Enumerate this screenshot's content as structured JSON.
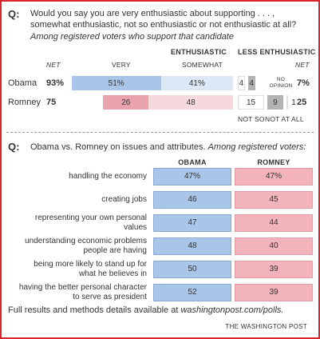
{
  "chart_data": [
    {
      "type": "diverging-bar",
      "question_marker": "Q:",
      "title": "Would you say you are very enthusiastic about supporting . . . , somewhat enthusiastic, not so enthusiastic or not enthusiastic at all?",
      "subtitle": "Among registered voters who support that candidate",
      "group_labels": [
        "ENTHUSIASTIC",
        "LESS ENTHUSIASTIC"
      ],
      "net_label": "NET",
      "categories": [
        "Obama",
        "Romney"
      ],
      "series": [
        {
          "name": "VERY",
          "colors": [
            "#a9c5e8",
            "#e8a3ad"
          ],
          "values": [
            51,
            26
          ],
          "value_labels": [
            "51%",
            "26"
          ]
        },
        {
          "name": "SOMEWHAT",
          "colors": [
            "#dce8f6",
            "#f6d9dd"
          ],
          "values": [
            41,
            48
          ],
          "value_labels": [
            "41%",
            "48"
          ]
        },
        {
          "name": "NOT SO",
          "colors": [
            "#ffffff",
            "#ffffff"
          ],
          "values": [
            4,
            15
          ],
          "value_labels": [
            "4",
            "15"
          ]
        },
        {
          "name": "NOT AT ALL",
          "colors": [
            "#b3b3b3",
            "#b3b3b3"
          ],
          "values": [
            4,
            9
          ],
          "value_labels": [
            "4",
            "9"
          ]
        },
        {
          "name": "NO OPINION",
          "colors": [
            "#dddddd",
            "#dddddd"
          ],
          "values": [
            null,
            1
          ],
          "value_labels": [
            null,
            "1"
          ]
        }
      ],
      "net": [
        {
          "values": [
            93,
            75
          ],
          "value_labels": [
            "93%",
            "75"
          ]
        },
        {
          "values": [
            7,
            25
          ],
          "value_labels": [
            "7%",
            "25"
          ]
        }
      ]
    },
    {
      "type": "table-bar",
      "question_marker": "Q:",
      "title": "Obama vs. Romney on issues and attributes.",
      "subtitle": "Among registered voters:",
      "categories": [
        "handling the economy",
        "creating jobs",
        "representing your own personal values",
        "understanding economic problems people are having",
        "being more likely to stand up for what he believes in",
        "having the better personal character to serve as president"
      ],
      "series": [
        {
          "name": "OBAMA",
          "color": "#a9c5e8",
          "values": [
            47,
            46,
            47,
            48,
            50,
            52
          ],
          "value_labels": [
            "47%",
            "46",
            "47",
            "48",
            "50",
            "52"
          ]
        },
        {
          "name": "ROMNEY",
          "color": "#f2b3bb",
          "values": [
            47,
            45,
            44,
            40,
            39,
            39
          ],
          "value_labels": [
            "47%",
            "45",
            "44",
            "40",
            "39",
            "39"
          ]
        }
      ]
    }
  ],
  "footer": {
    "text": "Full results and methods details available at",
    "link": "washingtonpost.com/polls.",
    "source": "THE WASHINGTON POST"
  }
}
